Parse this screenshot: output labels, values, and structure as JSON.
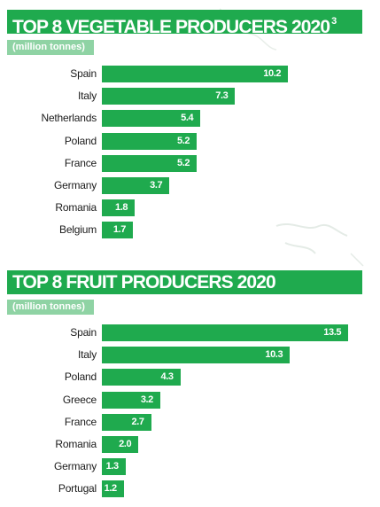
{
  "charts": {
    "vegetable": {
      "title": "TOP 8 VEGETABLE PRODUCERS 2020",
      "footnote": "3",
      "unit": "(million tonnes)"
    },
    "fruit": {
      "title": "TOP 8 FRUIT PRODUCERS 2020",
      "footnote": "",
      "unit": "(million tonnes)"
    }
  },
  "colors": {
    "bar": "#1faa4e",
    "title_bg": "#1faa4e",
    "unit_bg": "#8fd3a4",
    "value_text": "#ffffff"
  },
  "chart_data": [
    {
      "type": "bar",
      "orientation": "horizontal",
      "title": "TOP 8 VEGETABLE PRODUCERS 2020",
      "ylabel": "(million tonnes)",
      "xlabel": "",
      "categories": [
        "Spain",
        "Italy",
        "Netherlands",
        "Poland",
        "France",
        "Germany",
        "Romania",
        "Belgium"
      ],
      "values": [
        10.2,
        7.3,
        5.4,
        5.2,
        5.2,
        3.7,
        1.8,
        1.7
      ],
      "labels": [
        "10.2",
        "7.3",
        "5.4",
        "5.2",
        "5.2",
        "3.7",
        "1.8",
        "1.7"
      ],
      "grid": false,
      "legend": "none"
    },
    {
      "type": "bar",
      "orientation": "horizontal",
      "title": "TOP 8 FRUIT PRODUCERS 2020",
      "ylabel": "(million tonnes)",
      "xlabel": "",
      "categories": [
        "Spain",
        "Italy",
        "Poland",
        "Greece",
        "France",
        "Romania",
        "Germany",
        "Portugal"
      ],
      "values": [
        13.5,
        10.3,
        4.3,
        3.2,
        2.7,
        2.0,
        1.3,
        1.2
      ],
      "labels": [
        "13.5",
        "10.3",
        "4.3",
        "3.2",
        "2.7",
        "2.0",
        "1.3",
        "1.2"
      ],
      "grid": false,
      "legend": "none"
    }
  ]
}
